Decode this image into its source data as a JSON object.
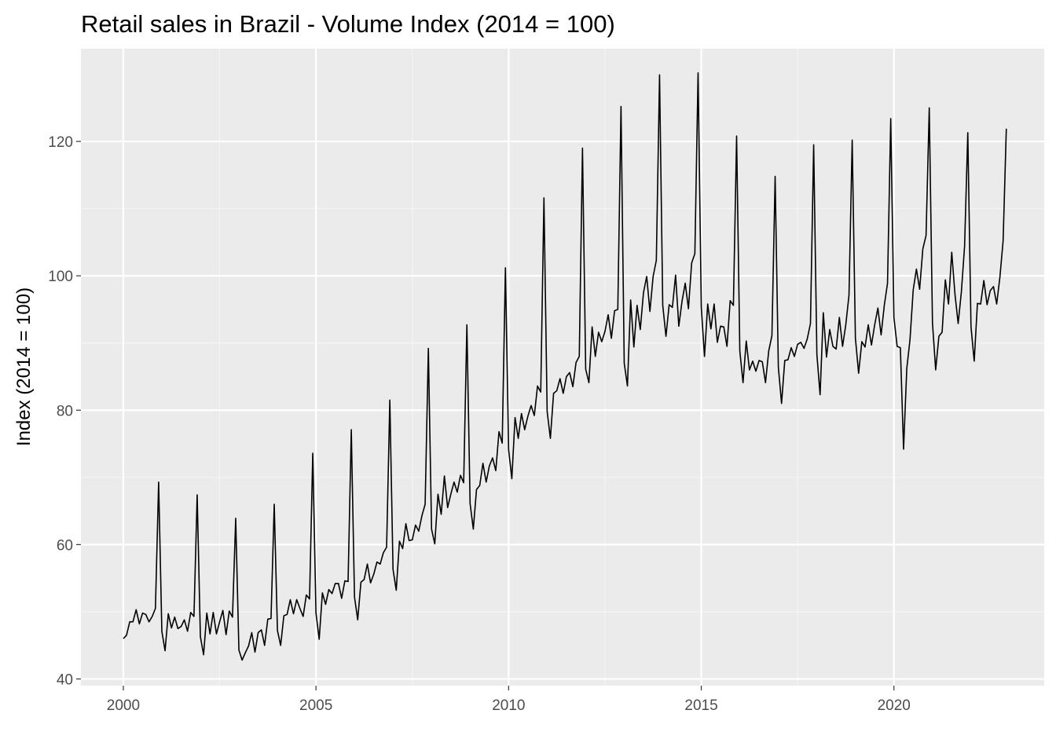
{
  "chart_data": {
    "type": "line",
    "title": "Retail sales in Brazil - Volume Index (2014 = 100)",
    "xlabel": "",
    "ylabel": "Index (2014 = 100)",
    "xlim": [
      1998.9,
      2023.9
    ],
    "ylim": [
      39,
      133.8
    ],
    "x_ticks": [
      2000,
      2005,
      2010,
      2015,
      2020
    ],
    "y_ticks": [
      40,
      60,
      80,
      100,
      120
    ],
    "grid": true,
    "start": [
      2000,
      1
    ],
    "frequency": "monthly",
    "series": [
      {
        "values": [
          46.0,
          46.5,
          48.5,
          48.5,
          50.3,
          48.2,
          49.8,
          49.6,
          48.5,
          49.3,
          50.5,
          69.3,
          47.1,
          44.2,
          49.7,
          47.6,
          49.2,
          47.5,
          47.8,
          48.8,
          47.1,
          49.9,
          49.3,
          67.4,
          46.3,
          43.6,
          49.8,
          46.7,
          49.9,
          46.7,
          48.5,
          50.2,
          46.6,
          50.1,
          49.2,
          63.9,
          44.3,
          42.8,
          43.9,
          44.9,
          46.9,
          44.0,
          46.9,
          47.3,
          45.0,
          48.9,
          49.0,
          66.0,
          47.2,
          45.0,
          49.4,
          49.6,
          51.8,
          49.7,
          51.8,
          50.5,
          49.3,
          52.5,
          51.9,
          73.6,
          49.8,
          45.9,
          52.8,
          51.1,
          53.3,
          52.7,
          54.2,
          54.2,
          52.0,
          54.6,
          54.5,
          77.1,
          52.2,
          48.8,
          54.4,
          54.8,
          57.1,
          54.3,
          55.6,
          57.4,
          57.1,
          58.8,
          59.6,
          81.5,
          56.3,
          53.2,
          60.5,
          59.4,
          63.1,
          60.6,
          60.7,
          62.9,
          62.0,
          64.3,
          66.0,
          89.2,
          62.3,
          60.1,
          67.5,
          64.5,
          70.2,
          65.5,
          67.5,
          69.3,
          67.8,
          70.3,
          69.2,
          92.7,
          66.1,
          62.3,
          68.2,
          68.8,
          72.1,
          69.3,
          71.7,
          72.9,
          71.0,
          76.8,
          75.1,
          101.2,
          74.1,
          69.8,
          78.9,
          75.8,
          79.5,
          77.1,
          79.1,
          80.7,
          79.2,
          83.6,
          82.7,
          111.6,
          79.8,
          75.8,
          82.5,
          82.9,
          84.7,
          82.5,
          85.0,
          85.6,
          83.5,
          87.1,
          88.0,
          119.0,
          86.1,
          84.1,
          92.4,
          88.0,
          91.6,
          90.2,
          91.7,
          94.2,
          90.7,
          94.8,
          95.0,
          125.2,
          87.0,
          83.6,
          96.4,
          89.4,
          95.6,
          92.0,
          97.5,
          99.9,
          94.7,
          99.9,
          102.3,
          129.9,
          95.6,
          91.0,
          95.7,
          95.3,
          100.1,
          92.5,
          96.2,
          98.9,
          95.1,
          101.9,
          103.3,
          130.2,
          95.3,
          88.0,
          95.8,
          92.1,
          95.8,
          90.1,
          92.5,
          92.4,
          89.5,
          96.3,
          95.6,
          120.8,
          88.8,
          84.1,
          90.3,
          86.0,
          87.3,
          85.8,
          87.4,
          87.2,
          84.1,
          88.8,
          91.1,
          114.8,
          86.4,
          81.0,
          87.4,
          87.5,
          89.3,
          88.0,
          89.8,
          90.1,
          89.2,
          90.6,
          92.9,
          119.5,
          88.3,
          82.3,
          94.5,
          87.9,
          92.0,
          89.5,
          89.1,
          93.8,
          89.5,
          92.7,
          97.1,
          120.2,
          90.7,
          85.5,
          90.2,
          89.4,
          92.7,
          89.7,
          92.7,
          95.2,
          91.2,
          95.6,
          98.9,
          123.4,
          93.8,
          89.5,
          89.3,
          74.2,
          86.2,
          90.5,
          97.9,
          101.0,
          98.0,
          104.0,
          106.0,
          125.0,
          93.0,
          86.0,
          91.0,
          91.6,
          99.4,
          95.8,
          103.5,
          97.3,
          92.9,
          97.6,
          104.4,
          121.3,
          92.4,
          87.3,
          95.9,
          95.8,
          99.3,
          95.7,
          97.8,
          98.4,
          95.8,
          99.8,
          105.2,
          121.9
        ]
      }
    ]
  },
  "colors": {
    "panel": "#ebebeb",
    "grid_major": "#ffffff",
    "grid_minor": "#f5f5f5",
    "line": "#000000"
  }
}
